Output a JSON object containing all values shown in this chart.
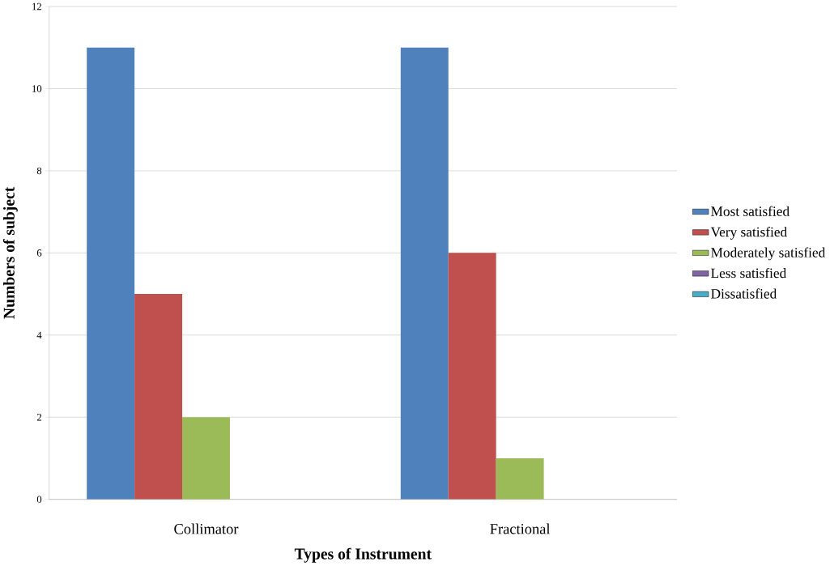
{
  "chart_data": {
    "type": "bar",
    "xlabel": "Types of Instrument",
    "ylabel": "Numbers of subject",
    "categories": [
      "Collimator",
      "Fractional"
    ],
    "series": [
      {
        "name": "Most satisfied",
        "color": "#4f81bd",
        "values": [
          11,
          11
        ]
      },
      {
        "name": "Very satisfied",
        "color": "#c0504d",
        "values": [
          5,
          6
        ]
      },
      {
        "name": "Moderately satisfied",
        "color": "#9bbb59",
        "values": [
          2,
          1
        ]
      },
      {
        "name": "Less satisfied",
        "color": "#8064a2",
        "values": [
          0,
          0
        ]
      },
      {
        "name": "Dissatisfied",
        "color": "#4bacc6",
        "values": [
          0,
          0
        ]
      }
    ],
    "ylim": [
      0,
      12
    ],
    "yticks": [
      0,
      2,
      4,
      6,
      8,
      10,
      12
    ],
    "grid": "y",
    "legend": "right"
  }
}
